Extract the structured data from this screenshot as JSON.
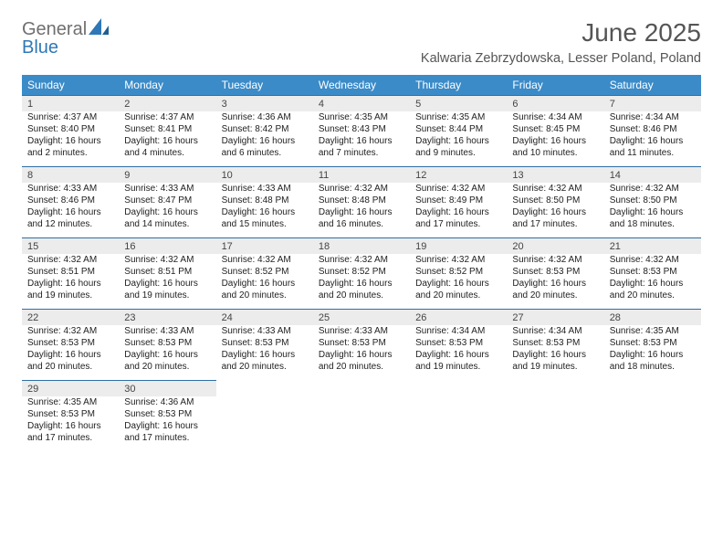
{
  "logo": {
    "text1": "General",
    "text2": "Blue",
    "color_gray": "#6f6f6f",
    "color_blue": "#2f78b7"
  },
  "title": "June 2025",
  "location": "Kalwaria Zebrzydowska, Lesser Poland, Poland",
  "style": {
    "header_bg": "#3b8bc8",
    "header_text": "#ffffff",
    "daynum_bg": "#ececec",
    "daynum_border": "#2f6fa3",
    "body_text": "#222222",
    "title_color": "#555555"
  },
  "weekday_labels": [
    "Sunday",
    "Monday",
    "Tuesday",
    "Wednesday",
    "Thursday",
    "Friday",
    "Saturday"
  ],
  "weeks": [
    {
      "days": [
        {
          "num": "1",
          "sunrise": "Sunrise: 4:37 AM",
          "sunset": "Sunset: 8:40 PM",
          "day1": "Daylight: 16 hours",
          "day2": "and 2 minutes."
        },
        {
          "num": "2",
          "sunrise": "Sunrise: 4:37 AM",
          "sunset": "Sunset: 8:41 PM",
          "day1": "Daylight: 16 hours",
          "day2": "and 4 minutes."
        },
        {
          "num": "3",
          "sunrise": "Sunrise: 4:36 AM",
          "sunset": "Sunset: 8:42 PM",
          "day1": "Daylight: 16 hours",
          "day2": "and 6 minutes."
        },
        {
          "num": "4",
          "sunrise": "Sunrise: 4:35 AM",
          "sunset": "Sunset: 8:43 PM",
          "day1": "Daylight: 16 hours",
          "day2": "and 7 minutes."
        },
        {
          "num": "5",
          "sunrise": "Sunrise: 4:35 AM",
          "sunset": "Sunset: 8:44 PM",
          "day1": "Daylight: 16 hours",
          "day2": "and 9 minutes."
        },
        {
          "num": "6",
          "sunrise": "Sunrise: 4:34 AM",
          "sunset": "Sunset: 8:45 PM",
          "day1": "Daylight: 16 hours",
          "day2": "and 10 minutes."
        },
        {
          "num": "7",
          "sunrise": "Sunrise: 4:34 AM",
          "sunset": "Sunset: 8:46 PM",
          "day1": "Daylight: 16 hours",
          "day2": "and 11 minutes."
        }
      ]
    },
    {
      "days": [
        {
          "num": "8",
          "sunrise": "Sunrise: 4:33 AM",
          "sunset": "Sunset: 8:46 PM",
          "day1": "Daylight: 16 hours",
          "day2": "and 12 minutes."
        },
        {
          "num": "9",
          "sunrise": "Sunrise: 4:33 AM",
          "sunset": "Sunset: 8:47 PM",
          "day1": "Daylight: 16 hours",
          "day2": "and 14 minutes."
        },
        {
          "num": "10",
          "sunrise": "Sunrise: 4:33 AM",
          "sunset": "Sunset: 8:48 PM",
          "day1": "Daylight: 16 hours",
          "day2": "and 15 minutes."
        },
        {
          "num": "11",
          "sunrise": "Sunrise: 4:32 AM",
          "sunset": "Sunset: 8:48 PM",
          "day1": "Daylight: 16 hours",
          "day2": "and 16 minutes."
        },
        {
          "num": "12",
          "sunrise": "Sunrise: 4:32 AM",
          "sunset": "Sunset: 8:49 PM",
          "day1": "Daylight: 16 hours",
          "day2": "and 17 minutes."
        },
        {
          "num": "13",
          "sunrise": "Sunrise: 4:32 AM",
          "sunset": "Sunset: 8:50 PM",
          "day1": "Daylight: 16 hours",
          "day2": "and 17 minutes."
        },
        {
          "num": "14",
          "sunrise": "Sunrise: 4:32 AM",
          "sunset": "Sunset: 8:50 PM",
          "day1": "Daylight: 16 hours",
          "day2": "and 18 minutes."
        }
      ]
    },
    {
      "days": [
        {
          "num": "15",
          "sunrise": "Sunrise: 4:32 AM",
          "sunset": "Sunset: 8:51 PM",
          "day1": "Daylight: 16 hours",
          "day2": "and 19 minutes."
        },
        {
          "num": "16",
          "sunrise": "Sunrise: 4:32 AM",
          "sunset": "Sunset: 8:51 PM",
          "day1": "Daylight: 16 hours",
          "day2": "and 19 minutes."
        },
        {
          "num": "17",
          "sunrise": "Sunrise: 4:32 AM",
          "sunset": "Sunset: 8:52 PM",
          "day1": "Daylight: 16 hours",
          "day2": "and 20 minutes."
        },
        {
          "num": "18",
          "sunrise": "Sunrise: 4:32 AM",
          "sunset": "Sunset: 8:52 PM",
          "day1": "Daylight: 16 hours",
          "day2": "and 20 minutes."
        },
        {
          "num": "19",
          "sunrise": "Sunrise: 4:32 AM",
          "sunset": "Sunset: 8:52 PM",
          "day1": "Daylight: 16 hours",
          "day2": "and 20 minutes."
        },
        {
          "num": "20",
          "sunrise": "Sunrise: 4:32 AM",
          "sunset": "Sunset: 8:53 PM",
          "day1": "Daylight: 16 hours",
          "day2": "and 20 minutes."
        },
        {
          "num": "21",
          "sunrise": "Sunrise: 4:32 AM",
          "sunset": "Sunset: 8:53 PM",
          "day1": "Daylight: 16 hours",
          "day2": "and 20 minutes."
        }
      ]
    },
    {
      "days": [
        {
          "num": "22",
          "sunrise": "Sunrise: 4:32 AM",
          "sunset": "Sunset: 8:53 PM",
          "day1": "Daylight: 16 hours",
          "day2": "and 20 minutes."
        },
        {
          "num": "23",
          "sunrise": "Sunrise: 4:33 AM",
          "sunset": "Sunset: 8:53 PM",
          "day1": "Daylight: 16 hours",
          "day2": "and 20 minutes."
        },
        {
          "num": "24",
          "sunrise": "Sunrise: 4:33 AM",
          "sunset": "Sunset: 8:53 PM",
          "day1": "Daylight: 16 hours",
          "day2": "and 20 minutes."
        },
        {
          "num": "25",
          "sunrise": "Sunrise: 4:33 AM",
          "sunset": "Sunset: 8:53 PM",
          "day1": "Daylight: 16 hours",
          "day2": "and 20 minutes."
        },
        {
          "num": "26",
          "sunrise": "Sunrise: 4:34 AM",
          "sunset": "Sunset: 8:53 PM",
          "day1": "Daylight: 16 hours",
          "day2": "and 19 minutes."
        },
        {
          "num": "27",
          "sunrise": "Sunrise: 4:34 AM",
          "sunset": "Sunset: 8:53 PM",
          "day1": "Daylight: 16 hours",
          "day2": "and 19 minutes."
        },
        {
          "num": "28",
          "sunrise": "Sunrise: 4:35 AM",
          "sunset": "Sunset: 8:53 PM",
          "day1": "Daylight: 16 hours",
          "day2": "and 18 minutes."
        }
      ]
    },
    {
      "days": [
        {
          "num": "29",
          "sunrise": "Sunrise: 4:35 AM",
          "sunset": "Sunset: 8:53 PM",
          "day1": "Daylight: 16 hours",
          "day2": "and 17 minutes."
        },
        {
          "num": "30",
          "sunrise": "Sunrise: 4:36 AM",
          "sunset": "Sunset: 8:53 PM",
          "day1": "Daylight: 16 hours",
          "day2": "and 17 minutes."
        },
        null,
        null,
        null,
        null,
        null
      ]
    }
  ]
}
